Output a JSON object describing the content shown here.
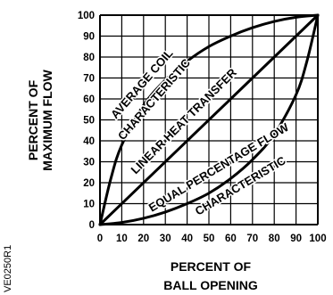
{
  "chart_data": {
    "type": "line",
    "xlabel": [
      "PERCENT OF",
      "BALL OPENING"
    ],
    "ylabel": [
      "PERCENT OF",
      "MAXIMUM FLOW"
    ],
    "xlim": [
      0,
      100
    ],
    "ylim": [
      0,
      100
    ],
    "x_ticks": [
      "0",
      "10",
      "20",
      "30",
      "40",
      "50",
      "60",
      "70",
      "80",
      "90",
      "100"
    ],
    "y_ticks": [
      "0",
      "10",
      "20",
      "30",
      "40",
      "50",
      "60",
      "70",
      "80",
      "90",
      "100"
    ],
    "grid": true,
    "series": [
      {
        "name": "AVERAGE COIL CHARACTERISTIC",
        "x": [
          0,
          5,
          10,
          20,
          30,
          40,
          50,
          60,
          70,
          80,
          90,
          100
        ],
        "y": [
          0,
          22,
          38,
          57,
          69,
          78,
          85,
          90,
          94,
          97,
          99,
          100
        ]
      },
      {
        "name": "LINEAR HEAT TRANSFER",
        "x": [
          0,
          100
        ],
        "y": [
          0,
          100
        ]
      },
      {
        "name": "EQUAL PERCENTAGE FLOW CHARACTERISTIC",
        "x": [
          0,
          10,
          20,
          30,
          40,
          50,
          60,
          70,
          80,
          90,
          95,
          100
        ],
        "y": [
          0,
          1,
          3,
          6,
          10,
          15,
          22,
          31,
          43,
          62,
          78,
          100
        ]
      }
    ],
    "curve_labels": {
      "average_coil": [
        "AVERAGE COIL",
        "CHARACTERISTIC"
      ],
      "linear": "LINEAR HEAT TRANSFER",
      "equal_percentage": [
        "EQUAL PERCENTAGE FLOW",
        "CHARACTERISTIC"
      ]
    }
  },
  "figure_id": "VE0250R1"
}
